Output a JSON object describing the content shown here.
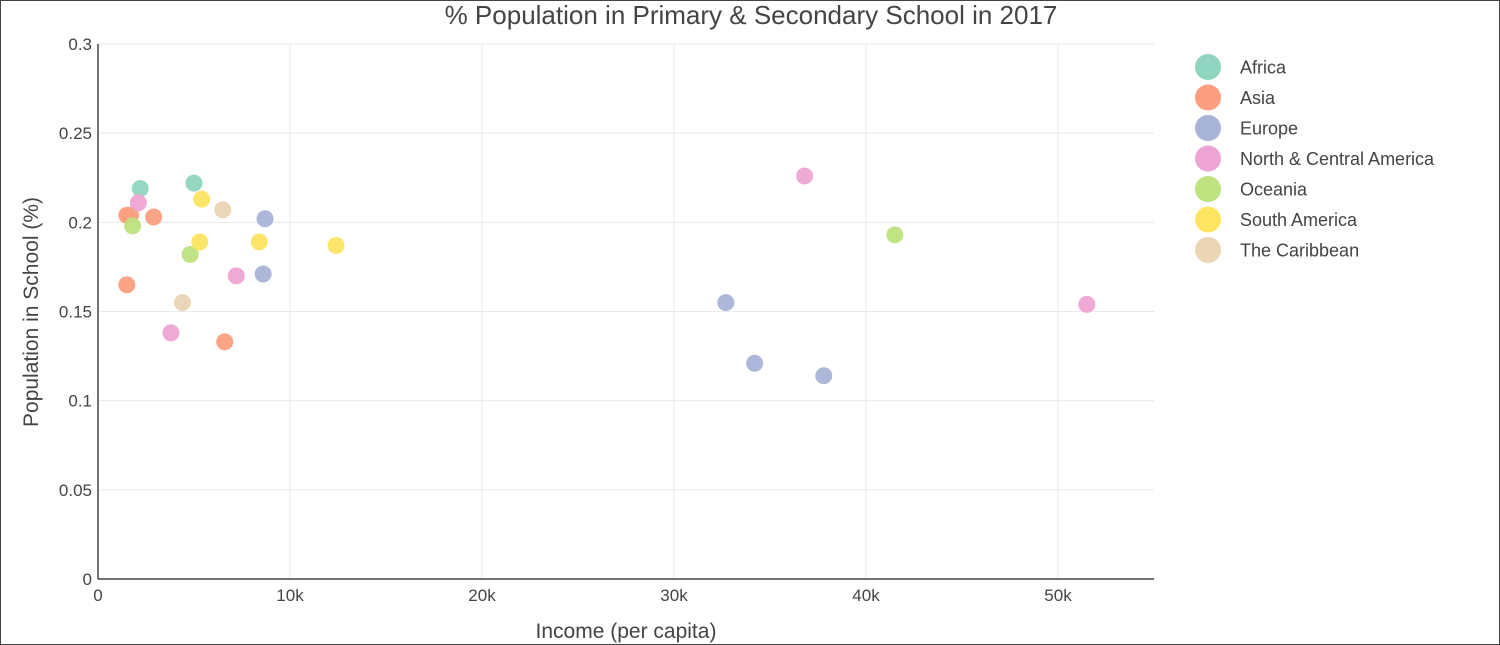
{
  "chart_data": {
    "type": "scatter",
    "title": "% Population in Primary & Secondary School in 2017",
    "xlabel": "Income (per capita)",
    "ylabel": "Population in School (%)",
    "xlim": [
      0,
      55000
    ],
    "ylim": [
      0,
      0.3
    ],
    "xticks": [
      0,
      10000,
      20000,
      30000,
      40000,
      50000
    ],
    "xtick_labels": [
      "0",
      "10k",
      "20k",
      "30k",
      "40k",
      "50k"
    ],
    "yticks": [
      0,
      0.05,
      0.1,
      0.15,
      0.2,
      0.25,
      0.3
    ],
    "ytick_labels": [
      "0",
      "0.05",
      "0.1",
      "0.15",
      "0.2",
      "0.25",
      "0.3"
    ],
    "grid": true,
    "legend_position": "right",
    "series": [
      {
        "name": "Africa",
        "color": "#8fd5c0",
        "points": [
          {
            "x": 2200,
            "y": 0.219
          },
          {
            "x": 5000,
            "y": 0.222
          }
        ]
      },
      {
        "name": "Asia",
        "color": "#fc9f7e",
        "points": [
          {
            "x": 1500,
            "y": 0.204
          },
          {
            "x": 1700,
            "y": 0.204
          },
          {
            "x": 2900,
            "y": 0.203
          },
          {
            "x": 1500,
            "y": 0.165
          },
          {
            "x": 6600,
            "y": 0.133
          }
        ]
      },
      {
        "name": "Europe",
        "color": "#a8b3d8",
        "points": [
          {
            "x": 8700,
            "y": 0.202
          },
          {
            "x": 8600,
            "y": 0.171
          },
          {
            "x": 32700,
            "y": 0.155
          },
          {
            "x": 34200,
            "y": 0.121
          },
          {
            "x": 37800,
            "y": 0.114
          }
        ]
      },
      {
        "name": "North & Central America",
        "color": "#eda4d2",
        "points": [
          {
            "x": 2100,
            "y": 0.211
          },
          {
            "x": 7200,
            "y": 0.17
          },
          {
            "x": 3800,
            "y": 0.138
          },
          {
            "x": 36800,
            "y": 0.226
          },
          {
            "x": 51500,
            "y": 0.154
          }
        ]
      },
      {
        "name": "Oceania",
        "color": "#bde27e",
        "points": [
          {
            "x": 1800,
            "y": 0.198
          },
          {
            "x": 4800,
            "y": 0.182
          },
          {
            "x": 41500,
            "y": 0.193
          }
        ]
      },
      {
        "name": "South America",
        "color": "#fde461",
        "points": [
          {
            "x": 5400,
            "y": 0.213
          },
          {
            "x": 5300,
            "y": 0.189
          },
          {
            "x": 8400,
            "y": 0.189
          },
          {
            "x": 12400,
            "y": 0.187
          }
        ]
      },
      {
        "name": "The Caribbean",
        "color": "#ead5b4",
        "points": [
          {
            "x": 6500,
            "y": 0.207
          },
          {
            "x": 4400,
            "y": 0.155
          }
        ]
      }
    ]
  }
}
